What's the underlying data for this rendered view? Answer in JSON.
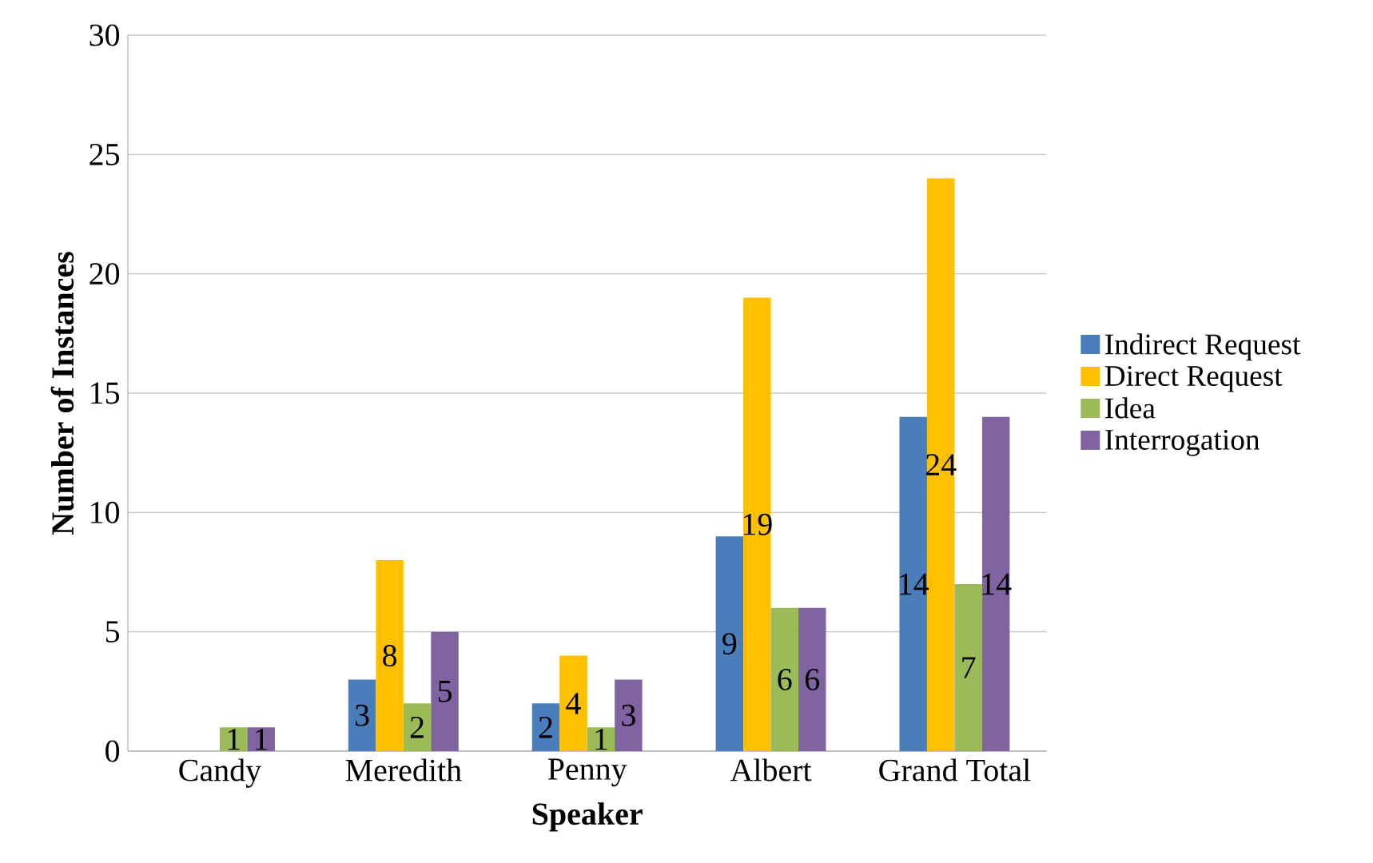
{
  "chart_data": {
    "type": "bar",
    "xlabel": "Speaker",
    "ylabel": "Number of Instances",
    "categories": [
      "Candy",
      "Meredith",
      "Penny",
      "Albert",
      "Grand Total"
    ],
    "series": [
      {
        "name": "Indirect Request",
        "color": "#4a7ebb",
        "values": [
          0,
          3,
          2,
          9,
          14
        ],
        "value_labels": [
          null,
          "3",
          "2",
          "9",
          "14"
        ]
      },
      {
        "name": "Direct Request",
        "color": "#ffc000",
        "values": [
          0,
          8,
          4,
          19,
          24
        ],
        "value_labels": [
          null,
          "8",
          "4",
          "19",
          "24"
        ]
      },
      {
        "name": "Idea",
        "color": "#9bbb59",
        "values": [
          1,
          2,
          1,
          6,
          7
        ],
        "value_labels": [
          "1",
          "2",
          "1",
          "6",
          "7"
        ]
      },
      {
        "name": "Interrogation",
        "color": "#8064a2",
        "values": [
          1,
          5,
          3,
          6,
          14
        ],
        "value_labels": [
          "1",
          "5",
          "3",
          "6",
          "14"
        ]
      }
    ],
    "ylim": [
      0,
      30
    ],
    "yticks": [
      0,
      5,
      10,
      15,
      20,
      25,
      30
    ],
    "grid": "y",
    "legend": "right"
  }
}
